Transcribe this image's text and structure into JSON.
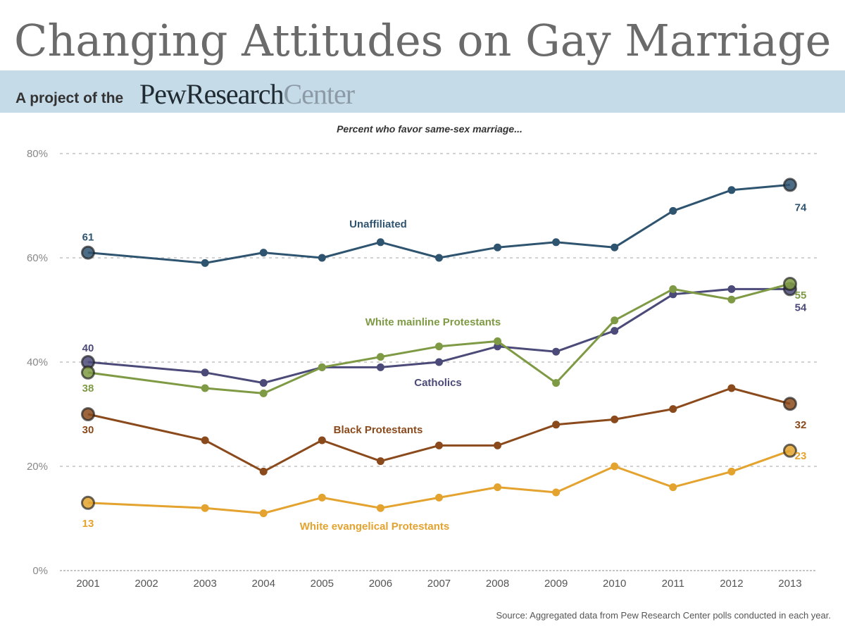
{
  "header": {
    "title": "Changing Attitudes on Gay Marriage",
    "band_prefix": "A project of the",
    "logo_primary": "PewResearch",
    "logo_secondary": "Center"
  },
  "footer": {
    "source": "Source: Aggregated data from Pew Research Center polls conducted in each year."
  },
  "chart_data": {
    "type": "line",
    "title": "Percent who favor same-sex marriage...",
    "xlabel": "",
    "ylabel": "",
    "ylim": [
      0,
      80
    ],
    "yticks": [
      0,
      20,
      40,
      60,
      80
    ],
    "ytick_labels": [
      "0%",
      "20%",
      "40%",
      "60%",
      "80%"
    ],
    "grid": true,
    "x_tick_labels": [
      "2001",
      "2002",
      "2003",
      "2004",
      "2005",
      "2006",
      "2007",
      "2008",
      "2009",
      "2010",
      "2011",
      "2012",
      "2013"
    ],
    "x": [
      2001,
      2003,
      2004,
      2005,
      2006,
      2007,
      2008,
      2009,
      2010,
      2011,
      2012,
      2013
    ],
    "legend": "inline labels",
    "series": [
      {
        "name": "Unaffiliated",
        "color": "#2f5470",
        "values": [
          61,
          59,
          61,
          60,
          63,
          60,
          62,
          63,
          62,
          69,
          73,
          74
        ],
        "start_label": "61",
        "end_label": "74"
      },
      {
        "name": "White mainline Protestants",
        "color": "#7f9a44",
        "values": [
          38,
          35,
          34,
          39,
          41,
          43,
          44,
          36,
          48,
          54,
          52,
          55
        ],
        "start_label": "38",
        "end_label": "55"
      },
      {
        "name": "Catholics",
        "color": "#4b4a78",
        "values": [
          40,
          38,
          36,
          39,
          39,
          40,
          43,
          42,
          46,
          53,
          54,
          54
        ],
        "start_label": "40",
        "end_label": "54"
      },
      {
        "name": "Black Protestants",
        "color": "#8a4a1c",
        "values": [
          30,
          25,
          19,
          25,
          21,
          24,
          24,
          28,
          29,
          31,
          35,
          32
        ],
        "start_label": "30",
        "end_label": "32"
      },
      {
        "name": "White evangelical Protestants",
        "color": "#e3a32e",
        "values": [
          13,
          12,
          11,
          14,
          12,
          14,
          16,
          15,
          20,
          16,
          19,
          23
        ],
        "start_label": "13",
        "end_label": "23"
      }
    ]
  }
}
